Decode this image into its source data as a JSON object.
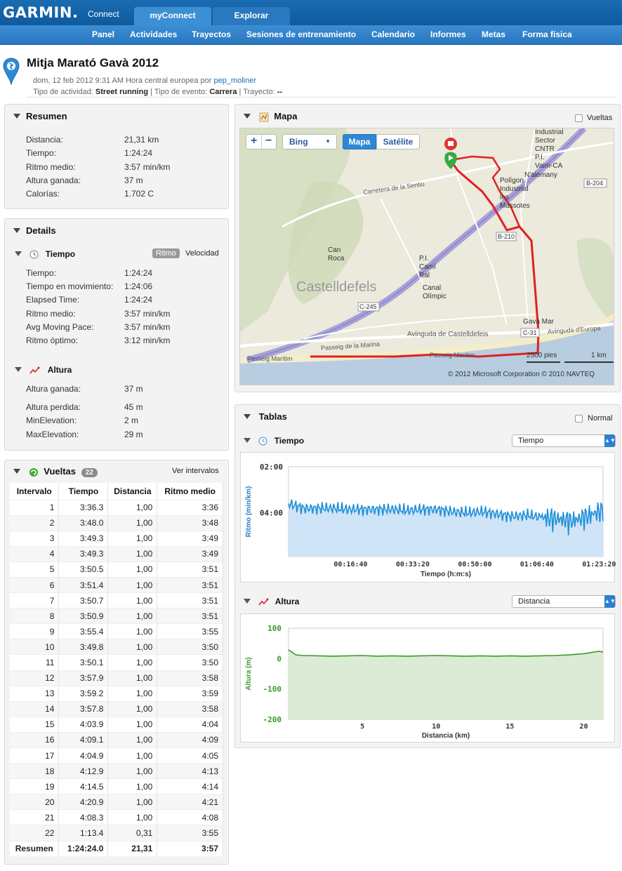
{
  "header": {
    "logo": "GARMIN.",
    "logo_sub": "Connect",
    "tabs": [
      "myConnect",
      "Explorar"
    ],
    "nav": [
      "Panel",
      "Actividades",
      "Trayectos",
      "Sesiones de entrenamiento",
      "Calendario",
      "Informes",
      "Metas",
      "Forma física"
    ]
  },
  "activity": {
    "title": "Mitja Marató Gavà 2012",
    "date_text": "dom, 12 feb 2012 9:31 AM Hora central europea por",
    "user": "pep_moliner",
    "type_label": "Tipo de actividad:",
    "type_value": "Street running",
    "event_label": "Tipo de evento:",
    "event_value": "Carrera",
    "course_label": "Trayecto:",
    "course_value": "--"
  },
  "resumen": {
    "title": "Resumen",
    "rows": [
      {
        "label": "Distancia:",
        "value": "21,31 km"
      },
      {
        "label": "Tiempo:",
        "value": "1:24:24"
      },
      {
        "label": "Ritmo medio:",
        "value": "3:57 min/km"
      },
      {
        "label": "Altura ganada:",
        "value": "37 m"
      },
      {
        "label": "Calorías:",
        "value": "1.702 C"
      }
    ]
  },
  "details": {
    "title": "Details",
    "tiempo": {
      "title": "Tiempo",
      "toggle_active": "Ritmo",
      "toggle_other": "Velocidad",
      "rows": [
        {
          "label": "Tiempo:",
          "value": "1:24:24"
        },
        {
          "label": "Tiempo en movimiento:",
          "value": "1:24:06"
        },
        {
          "label": "Elapsed Time:",
          "value": "1:24:24"
        },
        {
          "label": "Ritmo medio:",
          "value": "3:57 min/km"
        },
        {
          "label": "Avg Moving Pace:",
          "value": "3:57 min/km"
        },
        {
          "label": "Ritmo óptimo:",
          "value": "3:12 min/km"
        }
      ]
    },
    "altura": {
      "title": "Altura",
      "rows": [
        {
          "label": "Altura ganada:",
          "value": "37 m"
        },
        {
          "label": "Altura perdida:",
          "value": "45 m"
        },
        {
          "label": "MinElevation:",
          "value": "2 m"
        },
        {
          "label": "MaxElevation:",
          "value": "29 m"
        }
      ]
    }
  },
  "vueltas": {
    "title": "Vueltas",
    "count": "22",
    "link": "Ver intervalos",
    "headers": [
      "Intervalo",
      "Tiempo",
      "Distancia",
      "Ritmo medio"
    ],
    "rows": [
      [
        "1",
        "3:36.3",
        "1,00",
        "3:36"
      ],
      [
        "2",
        "3:48.0",
        "1,00",
        "3:48"
      ],
      [
        "3",
        "3:49.3",
        "1,00",
        "3:49"
      ],
      [
        "4",
        "3:49.3",
        "1,00",
        "3:49"
      ],
      [
        "5",
        "3:50.5",
        "1,00",
        "3:51"
      ],
      [
        "6",
        "3:51.4",
        "1,00",
        "3:51"
      ],
      [
        "7",
        "3:50.7",
        "1,00",
        "3:51"
      ],
      [
        "8",
        "3:50.9",
        "1,00",
        "3:51"
      ],
      [
        "9",
        "3:55.4",
        "1,00",
        "3:55"
      ],
      [
        "10",
        "3:49.8",
        "1,00",
        "3:50"
      ],
      [
        "11",
        "3:50.1",
        "1,00",
        "3:50"
      ],
      [
        "12",
        "3:57.9",
        "1,00",
        "3:58"
      ],
      [
        "13",
        "3:59.2",
        "1,00",
        "3:59"
      ],
      [
        "14",
        "3:57.8",
        "1,00",
        "3:58"
      ],
      [
        "15",
        "4:03.9",
        "1,00",
        "4:04"
      ],
      [
        "16",
        "4:09.1",
        "1,00",
        "4:09"
      ],
      [
        "17",
        "4:04.9",
        "1,00",
        "4:05"
      ],
      [
        "18",
        "4:12.9",
        "1,00",
        "4:13"
      ],
      [
        "19",
        "4:14.5",
        "1,00",
        "4:14"
      ],
      [
        "20",
        "4:20.9",
        "1,00",
        "4:21"
      ],
      [
        "21",
        "4:08.3",
        "1,00",
        "4:08"
      ],
      [
        "22",
        "1:13.4",
        "0,31",
        "3:55"
      ]
    ],
    "summary": [
      "Resumen",
      "1:24:24.0",
      "21,31",
      "3:57"
    ]
  },
  "mapa": {
    "title": "Mapa",
    "laps_checkbox": "Vueltas",
    "zoom_in": "+",
    "zoom_out": "−",
    "provider": "Bing",
    "view_map": "Mapa",
    "view_sat": "Satélite",
    "scale_ft": "2500 pies",
    "scale_km": "1 km",
    "copyright": "© 2012 Microsoft Corporation  © 2010 NAVTEQ",
    "labels": [
      "Industrial",
      "Sector",
      "CNTR",
      "P.I.",
      "Vaim-CA",
      "N'alemany",
      "Polígon",
      "Industrial",
      "les",
      "Massotes",
      "B-204",
      "Carretera de la Sentiu",
      "B-210",
      "Can",
      "Roca",
      "P.I.",
      "Camí",
      "Ral",
      "Castelldefels",
      "Canal",
      "Olímpic",
      "C-245",
      "Gavà Mar",
      "C-31",
      "Avinguda d'Europa",
      "Avinguda de Castelldefeis",
      "Passeig de la Marina",
      "Passeig Marítim",
      "Passeig Marítim"
    ]
  },
  "tablas": {
    "title": "Tablas",
    "normal_checkbox": "Normal",
    "tiempo_chart": {
      "title": "Tiempo",
      "select": "Tiempo"
    },
    "altura_chart": {
      "title": "Altura",
      "select": "Distancia"
    }
  },
  "chart_data": [
    {
      "type": "area",
      "title": "",
      "xlabel": "Tiempo (h:m:s)",
      "ylabel": "Ritmo (min/km)",
      "x_ticks": [
        "00:16:40",
        "00:33:20",
        "00:50:00",
        "01:06:40",
        "01:23:20"
      ],
      "y_ticks": [
        "02:00",
        "04:00"
      ],
      "y_reversed": true,
      "color": "#1f8fd8",
      "series": [
        {
          "x_minutes": [
            0,
            4,
            8,
            12,
            16,
            20,
            24,
            28,
            32,
            36,
            40,
            44,
            48,
            52,
            56,
            60,
            64,
            68,
            72,
            76,
            80,
            84
          ],
          "pace_min_per_km": [
            3.6,
            3.8,
            3.8,
            3.8,
            3.85,
            3.85,
            3.85,
            3.85,
            3.9,
            3.85,
            3.85,
            3.95,
            4.0,
            3.95,
            4.05,
            4.15,
            4.1,
            4.2,
            4.25,
            4.35,
            4.15,
            3.9
          ]
        }
      ]
    },
    {
      "type": "area",
      "title": "",
      "xlabel": "Distancia (km)",
      "ylabel": "Altura (m)",
      "x_ticks": [
        "5",
        "10",
        "15",
        "20"
      ],
      "y_ticks": [
        "100",
        "0",
        "-100",
        "-200"
      ],
      "xlim": [
        0,
        21.31
      ],
      "ylim": [
        -200,
        100
      ],
      "color": "#3a9a2a",
      "series": [
        {
          "x": [
            0,
            0.5,
            1,
            2,
            3,
            4,
            5,
            6,
            7,
            8,
            9,
            10,
            11,
            12,
            13,
            14,
            15,
            16,
            17,
            18,
            19,
            20,
            20.5,
            21,
            21.31
          ],
          "y": [
            29,
            12,
            10,
            9,
            8,
            9,
            10,
            8,
            9,
            8,
            9,
            10,
            9,
            8,
            9,
            8,
            9,
            8,
            9,
            10,
            12,
            16,
            20,
            24,
            22
          ]
        }
      ]
    }
  ]
}
